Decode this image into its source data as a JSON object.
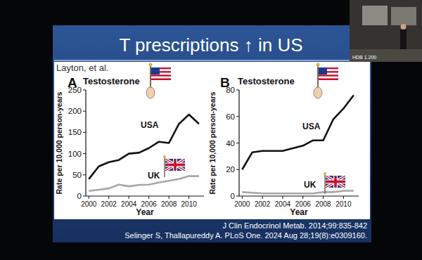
{
  "slide": {
    "title": "T prescriptions ↑ in US",
    "author": "Layton, et al.",
    "citations": [
      "J Clin Endocrinol Metab. 2014;99:835-842",
      "Selinger S, Thallapureddy A. PLoS One. 2024 Aug 28;19(8):e0309160."
    ],
    "room_label": "HDB 1.200"
  },
  "chart_data": [
    {
      "type": "line",
      "panel_label": "A",
      "title": "Testosterone",
      "x_label": "Year",
      "y_label": "Rate per 10,000 person-years",
      "x": [
        2000,
        2001,
        2002,
        2003,
        2004,
        2005,
        2006,
        2007,
        2008,
        2009,
        2010,
        2011
      ],
      "series": [
        {
          "name": "USA",
          "color": "#111111",
          "values": [
            40,
            70,
            80,
            85,
            100,
            102,
            113,
            128,
            125,
            170,
            192,
            170
          ]
        },
        {
          "name": "UK",
          "color": "#a6a6a6",
          "values": [
            12,
            15,
            18,
            27,
            23,
            26,
            27,
            32,
            36,
            40,
            47,
            47
          ]
        }
      ],
      "xlim": [
        1999.7,
        2011.5
      ],
      "xticks": [
        2000,
        2002,
        2004,
        2006,
        2008,
        2010
      ],
      "ylim": [
        0,
        250
      ],
      "yticks": [
        0,
        50,
        100,
        150,
        200,
        250
      ],
      "grid": false
    },
    {
      "type": "line",
      "panel_label": "B",
      "title": "Testosterone",
      "x_label": "Year",
      "y_label": "Rate per 10,000 person-years",
      "x": [
        2000,
        2001,
        2002,
        2003,
        2004,
        2005,
        2006,
        2007,
        2008,
        2009,
        2010,
        2011
      ],
      "series": [
        {
          "name": "USA",
          "color": "#111111",
          "values": [
            20,
            33,
            34,
            34,
            34,
            36,
            38,
            42,
            42,
            58,
            66,
            76
          ]
        },
        {
          "name": "UK",
          "color": "#a6a6a6",
          "values": [
            3,
            2.5,
            2,
            2,
            2,
            2,
            2,
            2,
            3,
            3,
            4,
            4
          ]
        }
      ],
      "xlim": [
        1999.7,
        2011.5
      ],
      "xticks": [
        2000,
        2002,
        2004,
        2006,
        2008,
        2010
      ],
      "ylim": [
        0,
        80
      ],
      "yticks": [
        0,
        20,
        40,
        60,
        80
      ],
      "grid": false
    }
  ]
}
